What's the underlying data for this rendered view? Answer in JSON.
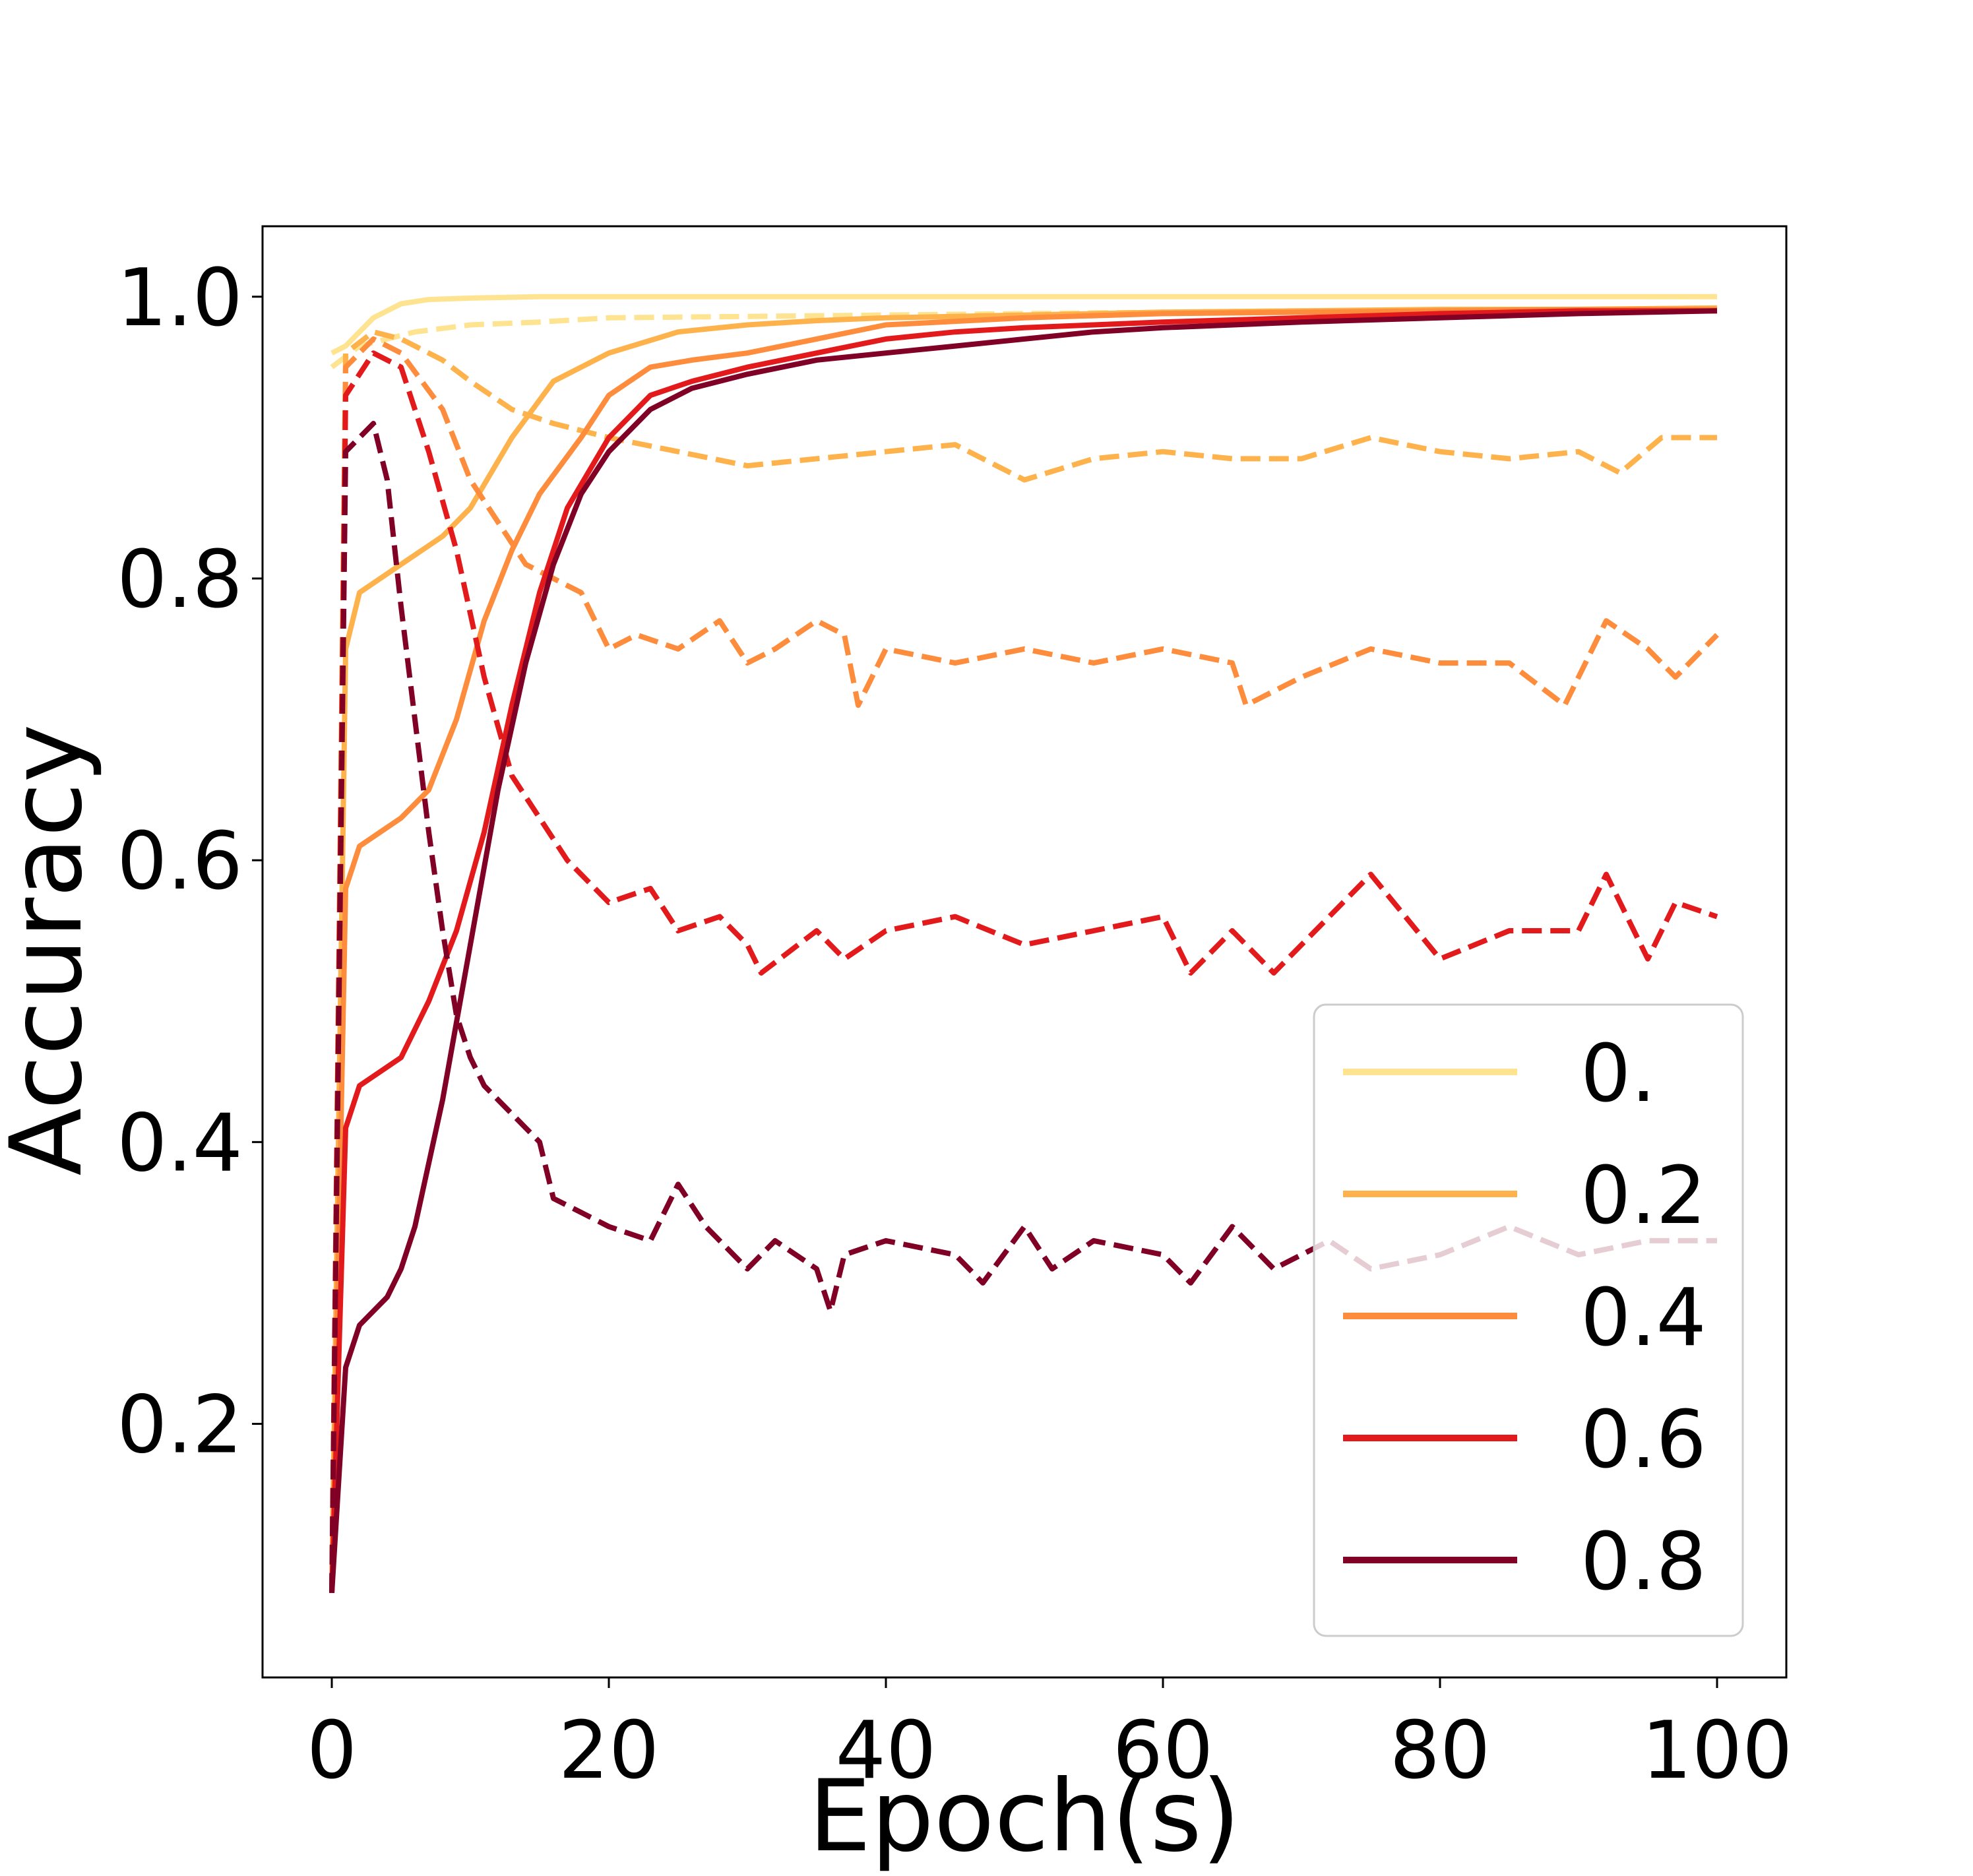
{
  "chart_data": {
    "type": "line",
    "title": "",
    "xlabel": "Epoch(s)",
    "ylabel": "Accuracy",
    "xlim": [
      -5,
      105
    ],
    "ylim": [
      0.02,
      1.05
    ],
    "xticks": [
      0,
      20,
      40,
      60,
      80,
      100
    ],
    "xtick_labels": [
      "0",
      "20",
      "40",
      "60",
      "80",
      "100"
    ],
    "yticks": [
      0.2,
      0.4,
      0.6,
      0.8,
      1.0
    ],
    "ytick_labels": [
      "0.2",
      "0.4",
      "0.6",
      "0.8",
      "1.0"
    ],
    "grid": false,
    "legend_position": "lower-right",
    "legend_note": "solid lines = labels in legend; dashed lines share the same colors",
    "series": [
      {
        "name": "0.",
        "color": "#fee391",
        "style": "solid",
        "x": [
          0,
          1,
          2,
          3,
          4,
          5,
          7,
          10,
          15,
          20,
          30,
          40,
          60,
          80,
          100
        ],
        "y": [
          0.96,
          0.965,
          0.975,
          0.985,
          0.99,
          0.995,
          0.998,
          0.999,
          1.0,
          1.0,
          1.0,
          1.0,
          1.0,
          1.0,
          1.0
        ]
      },
      {
        "name": "0.",
        "color": "#fee391",
        "style": "dashed",
        "x": [
          0,
          2,
          4,
          6,
          10,
          15,
          20,
          30,
          40,
          50,
          60,
          70,
          80,
          90,
          100
        ],
        "y": [
          0.95,
          0.965,
          0.97,
          0.975,
          0.98,
          0.982,
          0.985,
          0.986,
          0.987,
          0.988,
          0.989,
          0.99,
          0.99,
          0.991,
          0.992
        ]
      },
      {
        "name": "0.2",
        "color": "#feb24c",
        "style": "solid",
        "x": [
          0,
          1,
          2,
          5,
          8,
          10,
          13,
          16,
          20,
          25,
          30,
          35,
          40,
          50,
          60,
          70,
          80,
          90,
          100
        ],
        "y": [
          0.08,
          0.75,
          0.79,
          0.81,
          0.83,
          0.85,
          0.9,
          0.94,
          0.96,
          0.975,
          0.98,
          0.983,
          0.985,
          0.987,
          0.989,
          0.99,
          0.991,
          0.991,
          0.992
        ]
      },
      {
        "name": "0.2",
        "color": "#feb24c",
        "style": "dashed",
        "x": [
          0,
          1,
          3,
          5,
          8,
          10,
          13,
          16,
          20,
          25,
          30,
          35,
          40,
          45,
          50,
          55,
          60,
          65,
          70,
          75,
          80,
          85,
          90,
          93,
          96,
          100
        ],
        "y": [
          0.08,
          0.96,
          0.975,
          0.97,
          0.955,
          0.94,
          0.92,
          0.91,
          0.9,
          0.89,
          0.88,
          0.885,
          0.89,
          0.895,
          0.87,
          0.885,
          0.89,
          0.885,
          0.885,
          0.9,
          0.89,
          0.885,
          0.89,
          0.875,
          0.9,
          0.9
        ]
      },
      {
        "name": "0.4",
        "color": "#fd8d3c",
        "style": "solid",
        "x": [
          0,
          1,
          2,
          5,
          7,
          9,
          11,
          13,
          15,
          18,
          20,
          23,
          26,
          30,
          35,
          40,
          50,
          60,
          70,
          80,
          90,
          100
        ],
        "y": [
          0.08,
          0.58,
          0.61,
          0.63,
          0.65,
          0.7,
          0.77,
          0.82,
          0.86,
          0.9,
          0.93,
          0.95,
          0.955,
          0.96,
          0.97,
          0.98,
          0.985,
          0.988,
          0.989,
          0.99,
          0.991,
          0.991
        ]
      },
      {
        "name": "0.4",
        "color": "#fd8d3c",
        "style": "dashed",
        "x": [
          0,
          1,
          3,
          5,
          8,
          10,
          12,
          14,
          16,
          18,
          20,
          22,
          25,
          28,
          30,
          32,
          35,
          37,
          38,
          40,
          45,
          50,
          55,
          60,
          65,
          66,
          70,
          75,
          80,
          85,
          89,
          92,
          95,
          97,
          100
        ],
        "y": [
          0.08,
          0.95,
          0.97,
          0.96,
          0.92,
          0.87,
          0.84,
          0.81,
          0.8,
          0.79,
          0.75,
          0.76,
          0.75,
          0.77,
          0.74,
          0.75,
          0.77,
          0.76,
          0.71,
          0.75,
          0.74,
          0.75,
          0.74,
          0.75,
          0.74,
          0.71,
          0.73,
          0.75,
          0.74,
          0.74,
          0.71,
          0.77,
          0.75,
          0.73,
          0.76
        ]
      },
      {
        "name": "0.6",
        "color": "#e31a1c",
        "style": "solid",
        "x": [
          0,
          1,
          2,
          5,
          7,
          9,
          11,
          13,
          15,
          17,
          20,
          23,
          26,
          30,
          35,
          40,
          45,
          50,
          55,
          60,
          70,
          80,
          90,
          100
        ],
        "y": [
          0.08,
          0.41,
          0.44,
          0.46,
          0.5,
          0.55,
          0.62,
          0.71,
          0.79,
          0.85,
          0.9,
          0.93,
          0.94,
          0.95,
          0.96,
          0.97,
          0.975,
          0.978,
          0.98,
          0.982,
          0.985,
          0.988,
          0.99,
          0.99
        ]
      },
      {
        "name": "0.6",
        "color": "#e31a1c",
        "style": "dashed",
        "x": [
          0,
          1,
          3,
          5,
          7,
          9,
          11,
          13,
          15,
          17,
          20,
          23,
          25,
          28,
          30,
          31,
          35,
          37,
          40,
          45,
          50,
          55,
          60,
          62,
          65,
          68,
          70,
          75,
          80,
          85,
          90,
          92,
          95,
          97,
          100
        ],
        "y": [
          0.08,
          0.93,
          0.96,
          0.95,
          0.89,
          0.82,
          0.73,
          0.66,
          0.63,
          0.6,
          0.57,
          0.58,
          0.55,
          0.56,
          0.54,
          0.52,
          0.55,
          0.53,
          0.55,
          0.56,
          0.54,
          0.55,
          0.56,
          0.52,
          0.55,
          0.52,
          0.54,
          0.59,
          0.53,
          0.55,
          0.55,
          0.59,
          0.53,
          0.57,
          0.56
        ]
      },
      {
        "name": "0.8",
        "color": "#800026",
        "style": "solid",
        "x": [
          0,
          1,
          2,
          4,
          5,
          6,
          8,
          10,
          12,
          14,
          16,
          18,
          20,
          23,
          26,
          30,
          35,
          40,
          45,
          50,
          55,
          60,
          70,
          80,
          90,
          100
        ],
        "y": [
          0.08,
          0.24,
          0.27,
          0.29,
          0.31,
          0.34,
          0.43,
          0.54,
          0.65,
          0.74,
          0.81,
          0.86,
          0.89,
          0.92,
          0.935,
          0.945,
          0.955,
          0.96,
          0.965,
          0.97,
          0.975,
          0.978,
          0.982,
          0.985,
          0.988,
          0.99
        ]
      },
      {
        "name": "0.8",
        "color": "#800026",
        "style": "dashed",
        "x": [
          0,
          1,
          3,
          4,
          5,
          6,
          7,
          8,
          9,
          10,
          11,
          12,
          13,
          14,
          15,
          16,
          18,
          20,
          23,
          25,
          27,
          30,
          32,
          35,
          36,
          37,
          40,
          45,
          47,
          50,
          52,
          55,
          60,
          62,
          65,
          68,
          70,
          72,
          75,
          80,
          85,
          90,
          95,
          100
        ],
        "y": [
          0.08,
          0.89,
          0.91,
          0.87,
          0.78,
          0.7,
          0.62,
          0.55,
          0.49,
          0.46,
          0.44,
          0.43,
          0.42,
          0.41,
          0.4,
          0.36,
          0.35,
          0.34,
          0.33,
          0.37,
          0.34,
          0.31,
          0.33,
          0.31,
          0.28,
          0.32,
          0.33,
          0.32,
          0.3,
          0.34,
          0.31,
          0.33,
          0.32,
          0.3,
          0.34,
          0.31,
          0.32,
          0.33,
          0.31,
          0.32,
          0.34,
          0.32,
          0.33,
          0.33
        ]
      }
    ],
    "legend": [
      {
        "label": "0.",
        "color": "#fee391"
      },
      {
        "label": "0.2",
        "color": "#feb24c"
      },
      {
        "label": "0.4",
        "color": "#fd8d3c"
      },
      {
        "label": "0.6",
        "color": "#e31a1c"
      },
      {
        "label": "0.8",
        "color": "#800026"
      }
    ]
  }
}
